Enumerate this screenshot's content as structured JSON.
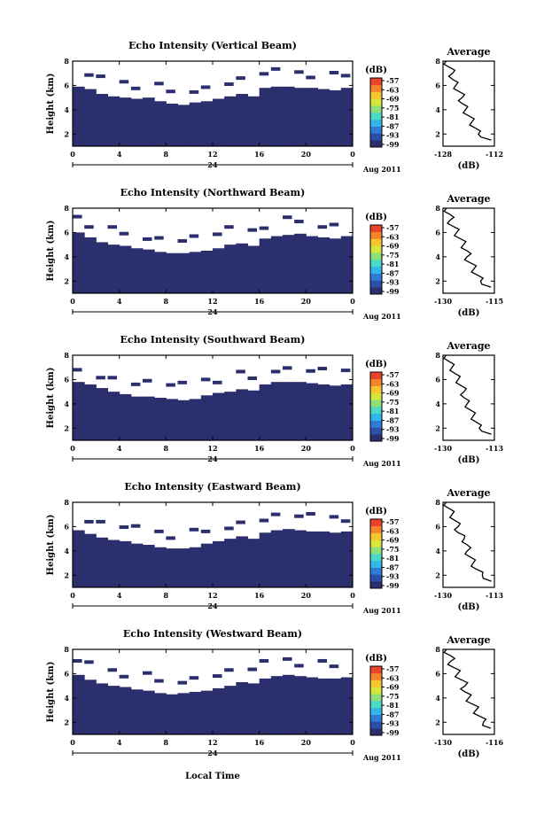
{
  "figure": {
    "xlabel": "Local Time",
    "colormap": [
      "#2b2f6e",
      "#2c4fa8",
      "#2f7bd8",
      "#33b7e8",
      "#4dd9c8",
      "#8de07a",
      "#d7e63c",
      "#f7c52e",
      "#f5852b",
      "#e8452b"
    ]
  },
  "chart_data": [
    {
      "type": "heatmap",
      "title": "Echo Intensity (Vertical Beam)",
      "ylabel": "Height (km)",
      "ylim": [
        1,
        8
      ],
      "yticks": [
        "2",
        "4",
        "6",
        "8"
      ],
      "xlim": [
        0,
        24
      ],
      "xticks": [
        "0",
        "4",
        "8",
        "12",
        "16",
        "20",
        "0"
      ],
      "date_label": "24",
      "date_suffix": "Aug 2011",
      "colorbar": {
        "unit": "(dB)",
        "ticks": [
          "-57",
          "-63",
          "-69",
          "-75",
          "-81",
          "-87",
          "-93",
          "-99"
        ]
      },
      "echo_top_km": [
        5.9,
        5.7,
        5.3,
        5.1,
        5.0,
        4.9,
        5.0,
        4.7,
        4.5,
        4.4,
        4.6,
        4.7,
        4.9,
        5.1,
        5.3,
        5.1,
        5.8,
        5.9,
        5.9,
        5.8,
        5.8,
        5.7,
        5.6,
        5.8
      ],
      "average": {
        "title": "Average",
        "xlabel": "(dB)",
        "xlim": [
          -128,
          -112
        ],
        "xticks": [
          "-128",
          "-112"
        ],
        "ylim": [
          1,
          8
        ],
        "height_km": [
          1.5,
          2.0,
          2.5,
          3.0,
          3.5,
          4.0,
          4.5,
          5.0,
          5.5,
          6.0,
          6.5,
          7.0,
          7.5,
          8.0
        ],
        "db": [
          -113,
          -117,
          -118,
          -119,
          -120,
          -121,
          -122,
          -122,
          -123,
          -124,
          -125,
          -125,
          -126,
          -127
        ]
      }
    },
    {
      "type": "heatmap",
      "title": "Echo Intensity (Northward Beam)",
      "ylabel": "Height (km)",
      "ylim": [
        1,
        8
      ],
      "yticks": [
        "2",
        "4",
        "6",
        "8"
      ],
      "xlim": [
        0,
        24
      ],
      "xticks": [
        "0",
        "4",
        "8",
        "12",
        "16",
        "20",
        "0"
      ],
      "date_label": "24",
      "date_suffix": "Aug 2011",
      "colorbar": {
        "unit": "(dB)",
        "ticks": [
          "-57",
          "-63",
          "-69",
          "-75",
          "-81",
          "-87",
          "-93",
          "-99"
        ]
      },
      "echo_top_km": [
        6.0,
        5.6,
        5.2,
        5.0,
        4.9,
        4.7,
        4.6,
        4.4,
        4.3,
        4.3,
        4.4,
        4.5,
        4.7,
        5.0,
        5.1,
        4.9,
        5.5,
        5.7,
        5.8,
        5.9,
        5.7,
        5.6,
        5.5,
        5.7
      ],
      "average": {
        "title": "Average",
        "xlabel": "(dB)",
        "xlim": [
          -130,
          -115
        ],
        "xticks": [
          "-130",
          "-115"
        ],
        "ylim": [
          1,
          8
        ],
        "height_km": [
          1.5,
          2.0,
          2.5,
          3.0,
          3.5,
          4.0,
          4.5,
          5.0,
          5.5,
          6.0,
          6.5,
          7.0,
          7.5,
          8.0
        ],
        "db": [
          -116,
          -119,
          -120,
          -121,
          -122,
          -123,
          -123,
          -124,
          -125,
          -126,
          -127,
          -128,
          -128,
          -129
        ]
      }
    },
    {
      "type": "heatmap",
      "title": "Echo Intensity (Southward Beam)",
      "ylabel": "Height (km)",
      "ylim": [
        1,
        8
      ],
      "yticks": [
        "2",
        "4",
        "6",
        "8"
      ],
      "xlim": [
        0,
        24
      ],
      "xticks": [
        "0",
        "4",
        "8",
        "12",
        "16",
        "20",
        "0"
      ],
      "date_label": "24",
      "date_suffix": "Aug 2011",
      "colorbar": {
        "unit": "(dB)",
        "ticks": [
          "-57",
          "-63",
          "-69",
          "-75",
          "-81",
          "-87",
          "-93",
          "-99"
        ]
      },
      "echo_top_km": [
        5.8,
        5.6,
        5.3,
        5.0,
        4.8,
        4.6,
        4.6,
        4.5,
        4.4,
        4.3,
        4.4,
        4.7,
        4.9,
        5.0,
        5.2,
        5.1,
        5.6,
        5.8,
        5.8,
        5.8,
        5.7,
        5.6,
        5.5,
        5.6
      ],
      "average": {
        "title": "Average",
        "xlabel": "(dB)",
        "xlim": [
          -130,
          -113
        ],
        "xticks": [
          "-130",
          "-113"
        ],
        "ylim": [
          1,
          8
        ],
        "height_km": [
          1.5,
          2.0,
          2.5,
          3.0,
          3.5,
          4.0,
          4.5,
          5.0,
          5.5,
          6.0,
          6.5,
          7.0,
          7.5,
          8.0
        ],
        "db": [
          -114,
          -118,
          -119,
          -120,
          -121,
          -122,
          -123,
          -123,
          -124,
          -125,
          -126,
          -127,
          -128,
          -129
        ]
      }
    },
    {
      "type": "heatmap",
      "title": "Echo Intensity (Eastward Beam)",
      "ylabel": "Height (km)",
      "ylim": [
        1,
        8
      ],
      "yticks": [
        "2",
        "4",
        "6",
        "8"
      ],
      "xlim": [
        0,
        24
      ],
      "xticks": [
        "0",
        "4",
        "8",
        "12",
        "16",
        "20",
        "0"
      ],
      "date_label": "24",
      "date_suffix": "Aug 2011",
      "colorbar": {
        "unit": "(dB)",
        "ticks": [
          "-57",
          "-63",
          "-69",
          "-75",
          "-81",
          "-87",
          "-93",
          "-99"
        ]
      },
      "echo_top_km": [
        5.7,
        5.4,
        5.1,
        4.9,
        4.8,
        4.6,
        4.5,
        4.3,
        4.2,
        4.2,
        4.3,
        4.6,
        4.8,
        5.0,
        5.2,
        5.0,
        5.5,
        5.7,
        5.8,
        5.7,
        5.6,
        5.6,
        5.5,
        5.6
      ],
      "average": {
        "title": "Average",
        "xlabel": "(dB)",
        "xlim": [
          -130,
          -113
        ],
        "xticks": [
          "-130",
          "-113"
        ],
        "ylim": [
          1,
          8
        ],
        "height_km": [
          1.5,
          2.0,
          2.5,
          3.0,
          3.5,
          4.0,
          4.5,
          5.0,
          5.5,
          6.0,
          6.5,
          7.0,
          7.5,
          8.0
        ],
        "db": [
          -114,
          -117,
          -119,
          -120,
          -121,
          -122,
          -122,
          -123,
          -125,
          -125,
          -126,
          -127,
          -128,
          -129
        ]
      }
    },
    {
      "type": "heatmap",
      "title": "Echo Intensity (Westward Beam)",
      "ylabel": "Height (km)",
      "ylim": [
        1,
        8
      ],
      "yticks": [
        "2",
        "4",
        "6",
        "8"
      ],
      "xlim": [
        0,
        24
      ],
      "xticks": [
        "0",
        "4",
        "8",
        "12",
        "16",
        "20",
        "0"
      ],
      "date_label": "24",
      "date_suffix": "Aug 2011",
      "colorbar": {
        "unit": "(dB)",
        "ticks": [
          "-57",
          "-63",
          "-69",
          "-75",
          "-81",
          "-87",
          "-93",
          "-99"
        ]
      },
      "echo_top_km": [
        5.9,
        5.5,
        5.2,
        5.0,
        4.9,
        4.7,
        4.6,
        4.4,
        4.3,
        4.4,
        4.5,
        4.6,
        4.8,
        5.0,
        5.3,
        5.2,
        5.6,
        5.8,
        5.9,
        5.8,
        5.7,
        5.6,
        5.6,
        5.7
      ],
      "average": {
        "title": "Average",
        "xlabel": "(dB)",
        "xlim": [
          -130,
          -116
        ],
        "xticks": [
          "-130",
          "-116"
        ],
        "ylim": [
          1,
          8
        ],
        "height_km": [
          1.5,
          2.0,
          2.5,
          3.0,
          3.5,
          4.0,
          4.5,
          5.0,
          5.5,
          6.0,
          6.5,
          7.0,
          7.5,
          8.0
        ],
        "db": [
          -117,
          -119,
          -120,
          -121,
          -122,
          -123,
          -124,
          -124,
          -125,
          -126,
          -127,
          -128,
          -128,
          -129
        ]
      }
    }
  ]
}
